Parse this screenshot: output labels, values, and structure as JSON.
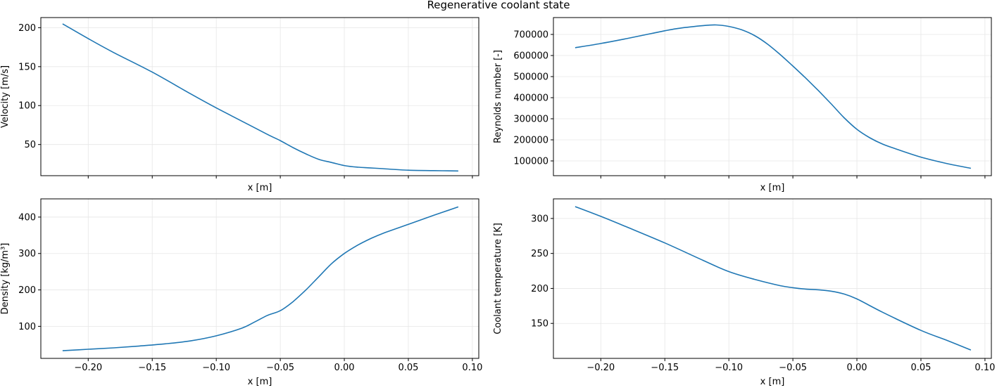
{
  "figure": {
    "title": "Regenerative coolant state"
  },
  "chart_data": [
    {
      "type": "line",
      "ylabel": "Velocity [m/s]",
      "xlabel": "x [m]",
      "xlim": [
        -0.237,
        0.105
      ],
      "ylim": [
        10,
        213
      ],
      "xticks": [
        -0.2,
        -0.15,
        -0.1,
        -0.05,
        0.0,
        0.05,
        0.1
      ],
      "xtick_labels": [],
      "yticks": [
        50,
        100,
        150,
        200
      ],
      "ytick_labels": [
        "50",
        "100",
        "150",
        "200"
      ],
      "grid": true,
      "color": "#1f77b4",
      "x": [
        -0.22,
        -0.2,
        -0.18,
        -0.15,
        -0.12,
        -0.1,
        -0.08,
        -0.06,
        -0.05,
        -0.04,
        -0.03,
        -0.02,
        -0.01,
        0.0,
        0.01,
        0.02,
        0.03,
        0.05,
        0.07,
        0.089
      ],
      "y": [
        205,
        186,
        168,
        143,
        115,
        97,
        80,
        63,
        55,
        46,
        38,
        31,
        27,
        23,
        21,
        20,
        19,
        17,
        16.5,
        16
      ]
    },
    {
      "type": "line",
      "ylabel": "Reynolds number [-]",
      "xlabel": "x [m]",
      "xlim": [
        -0.237,
        0.105
      ],
      "ylim": [
        30000,
        780000
      ],
      "xticks": [
        -0.2,
        -0.15,
        -0.1,
        -0.05,
        0.0,
        0.05,
        0.1
      ],
      "xtick_labels": [],
      "yticks": [
        100000,
        200000,
        300000,
        400000,
        500000,
        600000,
        700000
      ],
      "ytick_labels": [
        "100000",
        "200000",
        "300000",
        "400000",
        "500000",
        "600000",
        "700000"
      ],
      "grid": true,
      "color": "#1f77b4",
      "x": [
        -0.22,
        -0.2,
        -0.18,
        -0.16,
        -0.14,
        -0.12,
        -0.11,
        -0.1,
        -0.09,
        -0.08,
        -0.07,
        -0.06,
        -0.05,
        -0.04,
        -0.03,
        -0.02,
        -0.01,
        0.0,
        0.01,
        0.02,
        0.03,
        0.05,
        0.07,
        0.089
      ],
      "y": [
        637000,
        657000,
        680000,
        705000,
        728000,
        742000,
        745000,
        738000,
        722000,
        695000,
        655000,
        605000,
        550000,
        493000,
        433000,
        370000,
        305000,
        250000,
        210000,
        180000,
        158000,
        118000,
        88000,
        65000
      ]
    },
    {
      "type": "line",
      "ylabel": "Density [kg/m³]",
      "xlabel": "x [m]",
      "xlim": [
        -0.237,
        0.105
      ],
      "ylim": [
        12,
        450
      ],
      "xticks": [
        -0.2,
        -0.15,
        -0.1,
        -0.05,
        0.0,
        0.05,
        0.1
      ],
      "xtick_labels": [
        "−0.20",
        "−0.15",
        "−0.10",
        "−0.05",
        "0.00",
        "0.05",
        "0.10"
      ],
      "yticks": [
        100,
        200,
        300,
        400
      ],
      "ytick_labels": [
        "100",
        "200",
        "300",
        "400"
      ],
      "grid": true,
      "color": "#1f77b4",
      "x": [
        -0.22,
        -0.2,
        -0.18,
        -0.16,
        -0.14,
        -0.12,
        -0.1,
        -0.08,
        -0.07,
        -0.06,
        -0.05,
        -0.04,
        -0.03,
        -0.02,
        -0.01,
        0.0,
        0.01,
        0.02,
        0.03,
        0.05,
        0.07,
        0.089
      ],
      "y": [
        33,
        37,
        41,
        46,
        52,
        60,
        74,
        95,
        112,
        130,
        143,
        168,
        200,
        236,
        272,
        300,
        322,
        340,
        355,
        380,
        405,
        428
      ]
    },
    {
      "type": "line",
      "ylabel": "Coolant temperature [K]",
      "xlabel": "x [m]",
      "xlim": [
        -0.237,
        0.105
      ],
      "ylim": [
        100,
        328
      ],
      "xticks": [
        -0.2,
        -0.15,
        -0.1,
        -0.05,
        0.0,
        0.05,
        0.1
      ],
      "xtick_labels": [
        "−0.20",
        "−0.15",
        "−0.10",
        "−0.05",
        "0.00",
        "0.05",
        "0.10"
      ],
      "yticks": [
        150,
        200,
        250,
        300
      ],
      "ytick_labels": [
        "150",
        "200",
        "250",
        "300"
      ],
      "grid": true,
      "color": "#1f77b4",
      "x": [
        -0.22,
        -0.2,
        -0.18,
        -0.15,
        -0.12,
        -0.1,
        -0.08,
        -0.06,
        -0.05,
        -0.04,
        -0.03,
        -0.02,
        -0.01,
        0.0,
        0.02,
        0.05,
        0.07,
        0.089
      ],
      "y": [
        317,
        303,
        288,
        265,
        240,
        224,
        213,
        204,
        201,
        199,
        198,
        196,
        192,
        185,
        166,
        140,
        126,
        112
      ]
    }
  ]
}
